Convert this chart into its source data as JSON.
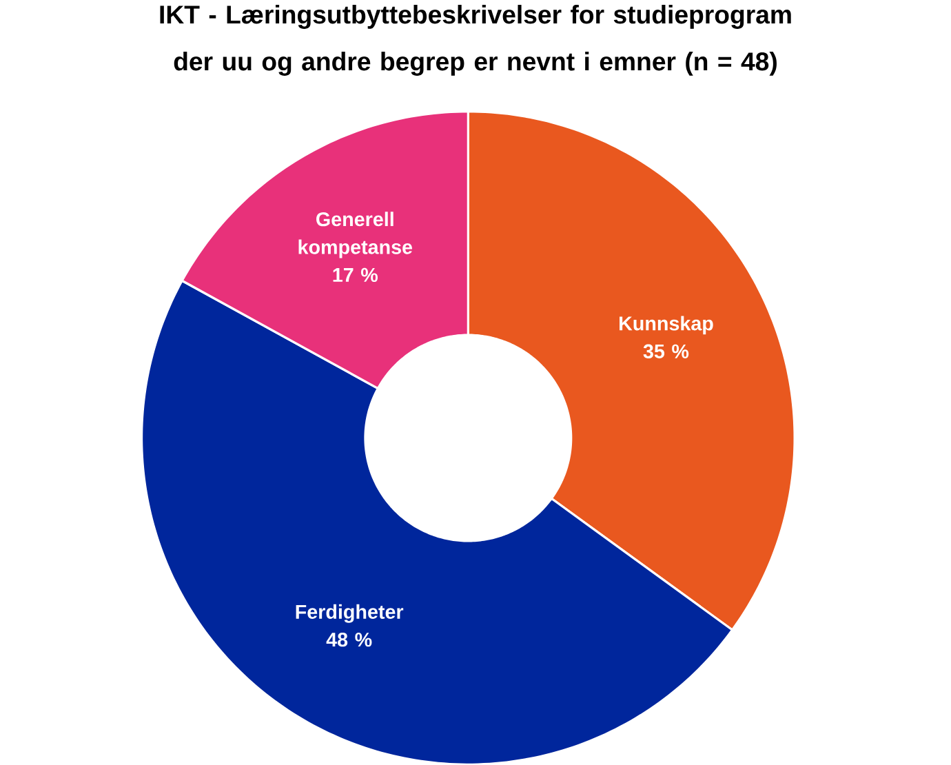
{
  "chart_data": {
    "type": "donut",
    "title": "IKT - Læringsutbyttebeskrivelser for studieprogram der uu og andre begrep er nevnt i emner (n = 48)",
    "categories": [
      "Kunnskap",
      "Ferdigheter",
      "Generell kompetanse"
    ],
    "values": [
      35,
      48,
      17
    ],
    "value_labels": [
      "35 %",
      "48 %",
      "17 %"
    ],
    "colors": [
      "#e9581f",
      "#00269c",
      "#e8317a"
    ]
  }
}
